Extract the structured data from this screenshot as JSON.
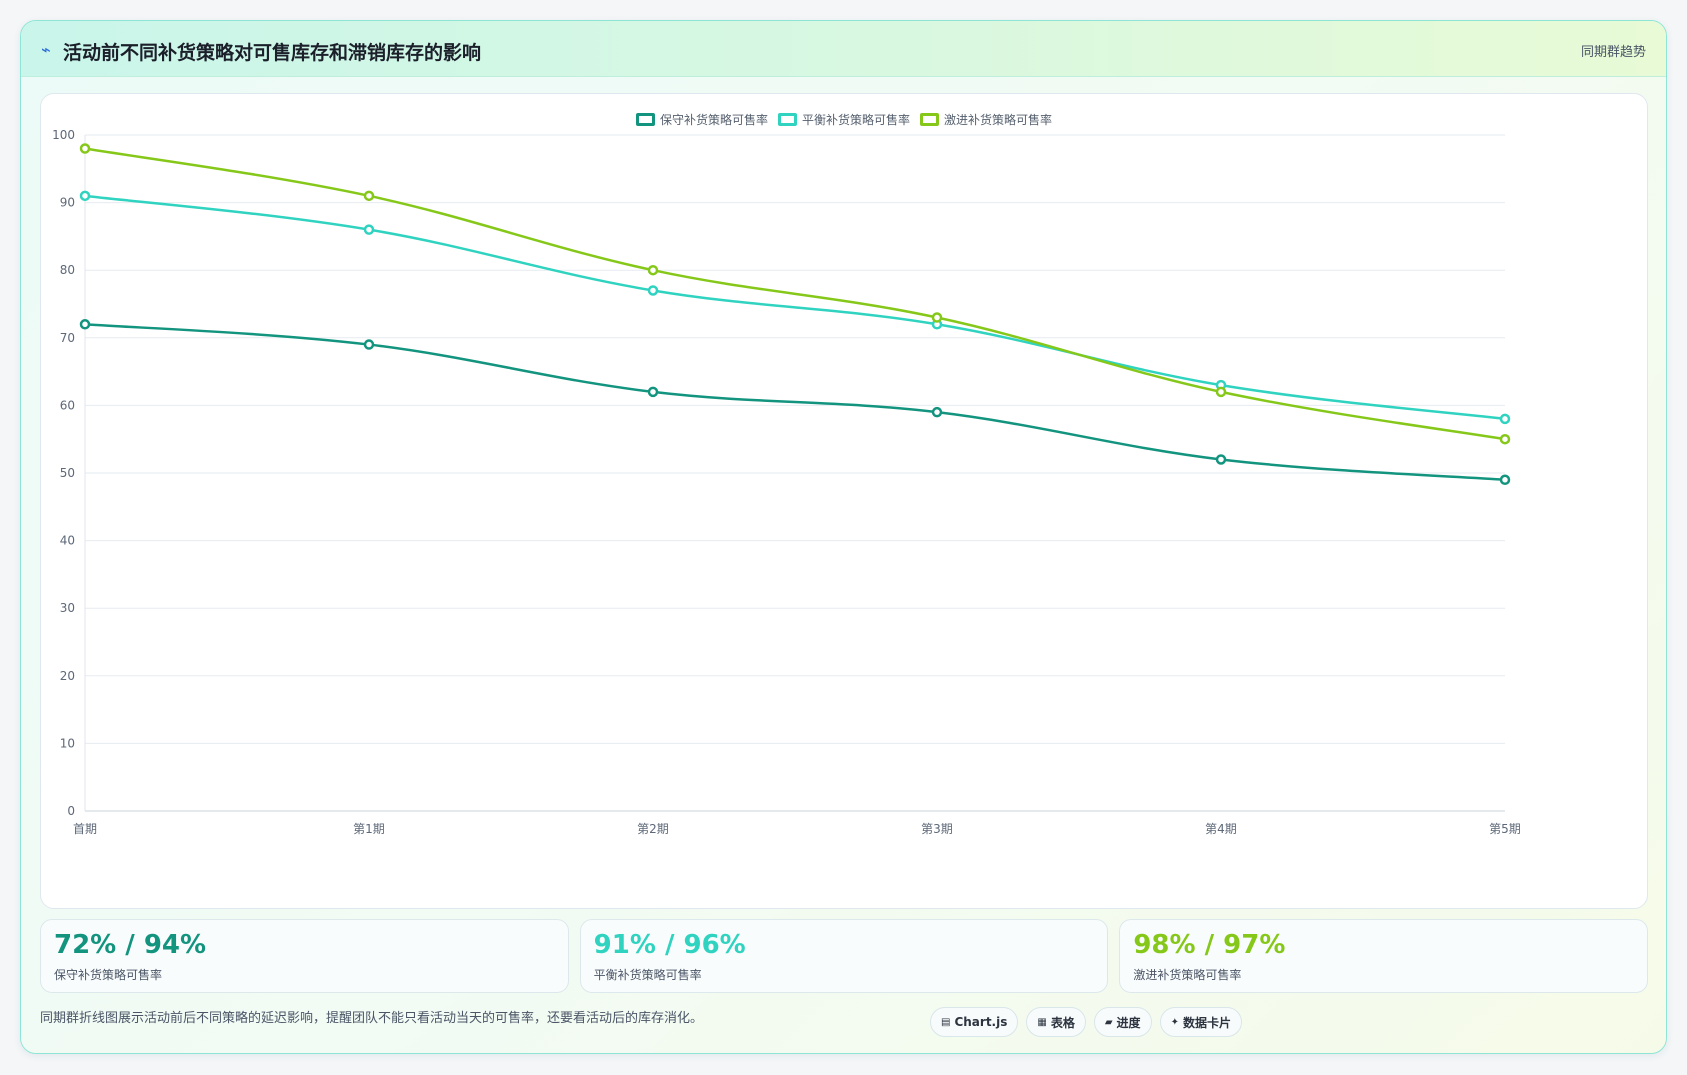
{
  "header": {
    "title": "活动前不同补货策略对可售库存和滞销库存的影响",
    "title_icon": "trend-line-icon",
    "tag": "同期群趋势"
  },
  "chart_data": {
    "type": "line",
    "categories": [
      "首期",
      "第1期",
      "第2期",
      "第3期",
      "第4期",
      "第5期"
    ],
    "series": [
      {
        "name": "保守补货策略可售率",
        "color": "#13947f",
        "values": [
          72,
          69,
          62,
          59,
          52,
          49
        ]
      },
      {
        "name": "平衡补货策略可售率",
        "color": "#2fd3c0",
        "values": [
          91,
          86,
          77,
          72,
          63,
          58
        ]
      },
      {
        "name": "激进补货策略可售率",
        "color": "#86c81a",
        "values": [
          98,
          91,
          80,
          73,
          62,
          55
        ]
      }
    ],
    "ylim": [
      0,
      100
    ],
    "yticks": [
      0,
      10,
      20,
      30,
      40,
      50,
      60,
      70,
      80,
      90,
      100
    ],
    "grid": true,
    "legend_position": "top-center",
    "title": "",
    "xlabel": "",
    "ylabel": ""
  },
  "stats": [
    {
      "value": "72% / 94%",
      "label": "保守补货策略可售率",
      "color": "#13947f"
    },
    {
      "value": "91% / 96%",
      "label": "平衡补货策略可售率",
      "color": "#2fd3c0"
    },
    {
      "value": "98% / 97%",
      "label": "激进补货策略可售率",
      "color": "#86c81a"
    }
  ],
  "footer": {
    "note": "同期群折线图展示活动前后不同策略的延迟影响，提醒团队不能只看活动当天的可售率，还要看活动后的库存消化。",
    "chips": [
      {
        "icon": "chart-icon",
        "glyph": "▤",
        "label": "Chart.js"
      },
      {
        "icon": "table-icon",
        "glyph": "▦",
        "label": "表格"
      },
      {
        "icon": "progress-icon",
        "glyph": "▰",
        "label": "进度"
      },
      {
        "icon": "sparkle-icon",
        "glyph": "✦",
        "label": "数据卡片"
      }
    ]
  }
}
